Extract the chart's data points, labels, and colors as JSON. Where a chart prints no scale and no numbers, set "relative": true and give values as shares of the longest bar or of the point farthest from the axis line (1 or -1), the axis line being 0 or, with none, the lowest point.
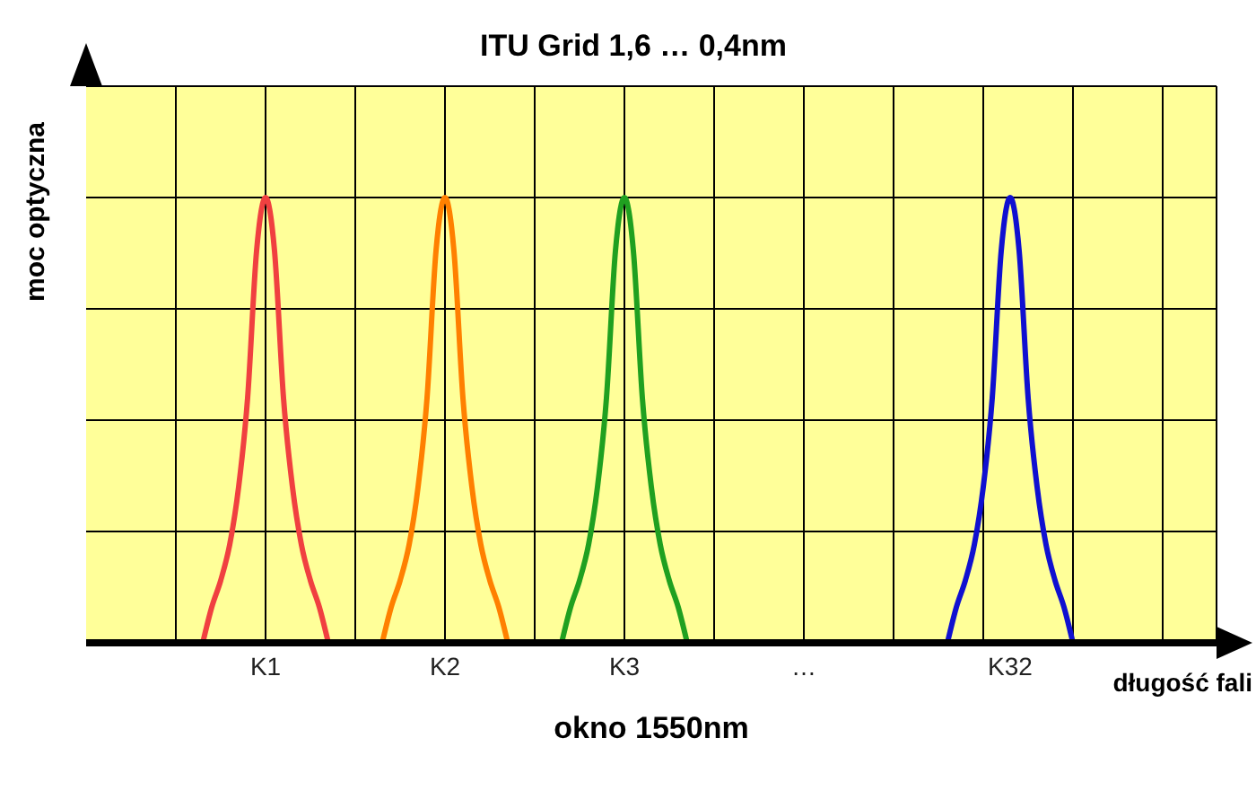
{
  "chart_data": {
    "type": "line",
    "title": "ITU Grid  1,6 … 0,4nm",
    "xlabel": "okno 1550nm",
    "ylabel": "moc optyczna",
    "annotations": [
      "długość fali"
    ],
    "relative": true,
    "grid": true,
    "marker": "none",
    "line_style": "solid",
    "categories": [
      null,
      null,
      null,
      null,
      null,
      null,
      null,
      null,
      null,
      null,
      null,
      null,
      null,
      null,
      null,
      null,
      null,
      null,
      null,
      null,
      "K1",
      null,
      null,
      null,
      null,
      null,
      null,
      null,
      null,
      null,
      null,
      null,
      null,
      null,
      null,
      null,
      null,
      null,
      null,
      null,
      "K2",
      null,
      null,
      null,
      null,
      null,
      null,
      null,
      null,
      null,
      null,
      null,
      null,
      null,
      null,
      null,
      null,
      null,
      null,
      null,
      "K3",
      null,
      null,
      null,
      null,
      null,
      null,
      null,
      null,
      null,
      null,
      null,
      null,
      null,
      null,
      null,
      null,
      null,
      null,
      null,
      "…",
      null,
      null,
      null,
      null,
      null,
      null,
      null,
      null,
      null,
      null,
      null,
      null,
      null,
      null,
      null,
      null,
      null,
      null,
      null,
      null,
      null,
      null,
      "K32",
      null,
      null,
      null,
      null,
      null,
      null,
      null,
      null,
      null,
      null,
      null,
      null,
      null,
      null,
      null,
      null,
      null,
      null,
      null,
      null,
      null,
      null,
      null
    ],
    "series": [
      {
        "color": "#f04040",
        "values": [
          null,
          null,
          null,
          null,
          null,
          null,
          null,
          null,
          null,
          null,
          null,
          null,
          null,
          0,
          0.08,
          0.14,
          0.22,
          0.35,
          0.55,
          0.88,
          1,
          0.88,
          0.55,
          0.35,
          0.22,
          0.14,
          0.08,
          0,
          null,
          null,
          null,
          null,
          null,
          null,
          null,
          null,
          null,
          null,
          null,
          null,
          null,
          null,
          null,
          null,
          null,
          null,
          null,
          null,
          null,
          null,
          null,
          null,
          null,
          null,
          null,
          null,
          null,
          null,
          null,
          null,
          null,
          null,
          null,
          null,
          null,
          null,
          null,
          null,
          null,
          null,
          null,
          null,
          null,
          null,
          null,
          null,
          null,
          null,
          null,
          null,
          null,
          null,
          null,
          null,
          null,
          null,
          null,
          null,
          null,
          null,
          null,
          null,
          null,
          null,
          null,
          null,
          null,
          null,
          null,
          null,
          null,
          null,
          null,
          null,
          null,
          null,
          null,
          null,
          null,
          null,
          null,
          null,
          null,
          null,
          null,
          null,
          null,
          null,
          null,
          null,
          null,
          null,
          null,
          null,
          null,
          null,
          null
        ]
      },
      {
        "color": "#ff8000",
        "values": [
          null,
          null,
          null,
          null,
          null,
          null,
          null,
          null,
          null,
          null,
          null,
          null,
          null,
          null,
          null,
          null,
          null,
          null,
          null,
          null,
          null,
          null,
          null,
          null,
          null,
          null,
          null,
          null,
          null,
          null,
          null,
          null,
          null,
          0,
          0.08,
          0.14,
          0.22,
          0.35,
          0.55,
          0.88,
          1,
          0.88,
          0.55,
          0.35,
          0.22,
          0.14,
          0.08,
          0,
          null,
          null,
          null,
          null,
          null,
          null,
          null,
          null,
          null,
          null,
          null,
          null,
          null,
          null,
          null,
          null,
          null,
          null,
          null,
          null,
          null,
          null,
          null,
          null,
          null,
          null,
          null,
          null,
          null,
          null,
          null,
          null,
          null,
          null,
          null,
          null,
          null,
          null,
          null,
          null,
          null,
          null,
          null,
          null,
          null,
          null,
          null,
          null,
          null,
          null,
          null,
          null,
          null,
          null,
          null,
          null,
          null,
          null,
          null,
          null,
          null,
          null,
          null,
          null,
          null,
          null,
          null,
          null,
          null,
          null,
          null,
          null,
          null,
          null,
          null,
          null,
          null,
          null,
          null
        ]
      },
      {
        "color": "#20a020",
        "values": [
          null,
          null,
          null,
          null,
          null,
          null,
          null,
          null,
          null,
          null,
          null,
          null,
          null,
          null,
          null,
          null,
          null,
          null,
          null,
          null,
          null,
          null,
          null,
          null,
          null,
          null,
          null,
          null,
          null,
          null,
          null,
          null,
          null,
          null,
          null,
          null,
          null,
          null,
          null,
          null,
          null,
          null,
          null,
          null,
          null,
          null,
          null,
          null,
          null,
          null,
          null,
          null,
          null,
          0,
          0.08,
          0.14,
          0.22,
          0.35,
          0.55,
          0.88,
          1,
          0.88,
          0.55,
          0.35,
          0.22,
          0.14,
          0.08,
          0,
          null,
          null,
          null,
          null,
          null,
          null,
          null,
          null,
          null,
          null,
          null,
          null,
          null,
          null,
          null,
          null,
          null,
          null,
          null,
          null,
          null,
          null,
          null,
          null,
          null,
          null,
          null,
          null,
          null,
          null,
          null,
          null,
          null,
          null,
          null,
          null,
          null,
          null,
          null,
          null,
          null,
          null,
          null,
          null,
          null,
          null,
          null,
          null,
          null,
          null,
          null,
          null,
          null,
          null,
          null,
          null,
          null,
          null,
          null
        ]
      },
      {
        "color": "#1010d0",
        "values": [
          null,
          null,
          null,
          null,
          null,
          null,
          null,
          null,
          null,
          null,
          null,
          null,
          null,
          null,
          null,
          null,
          null,
          null,
          null,
          null,
          null,
          null,
          null,
          null,
          null,
          null,
          null,
          null,
          null,
          null,
          null,
          null,
          null,
          null,
          null,
          null,
          null,
          null,
          null,
          null,
          null,
          null,
          null,
          null,
          null,
          null,
          null,
          null,
          null,
          null,
          null,
          null,
          null,
          null,
          null,
          null,
          null,
          null,
          null,
          null,
          null,
          null,
          null,
          null,
          null,
          null,
          null,
          null,
          null,
          null,
          null,
          null,
          null,
          null,
          null,
          null,
          null,
          null,
          null,
          null,
          null,
          null,
          null,
          null,
          null,
          null,
          null,
          null,
          null,
          null,
          null,
          null,
          null,
          null,
          null,
          null,
          0,
          0.08,
          0.14,
          0.22,
          0.35,
          0.55,
          0.88,
          1,
          0.88,
          0.55,
          0.35,
          0.22,
          0.14,
          0.08,
          0,
          null,
          null,
          null,
          null,
          null,
          null,
          null,
          null,
          null,
          null,
          null,
          null,
          null,
          null,
          null,
          null
        ]
      }
    ]
  }
}
